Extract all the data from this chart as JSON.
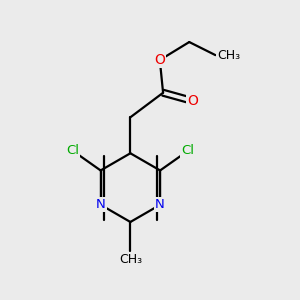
{
  "background_color": "#ebebeb",
  "atom_colors": {
    "C": "#000000",
    "N": "#0000ee",
    "O": "#ee0000",
    "Cl": "#00aa00"
  },
  "figsize": [
    3.0,
    3.0
  ],
  "dpi": 100,
  "bond_lw": 1.6,
  "font_size": 9.5
}
